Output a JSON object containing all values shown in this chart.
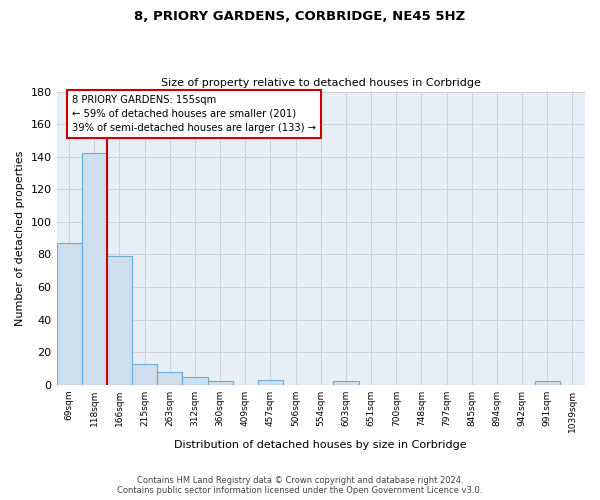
{
  "title1": "8, PRIORY GARDENS, CORBRIDGE, NE45 5HZ",
  "title2": "Size of property relative to detached houses in Corbridge",
  "xlabel": "Distribution of detached houses by size in Corbridge",
  "ylabel": "Number of detached properties",
  "footer_line1": "Contains HM Land Registry data © Crown copyright and database right 2024.",
  "footer_line2": "Contains public sector information licensed under the Open Government Licence v3.0.",
  "bin_labels": [
    "69sqm",
    "118sqm",
    "166sqm",
    "215sqm",
    "263sqm",
    "312sqm",
    "360sqm",
    "409sqm",
    "457sqm",
    "506sqm",
    "554sqm",
    "603sqm",
    "651sqm",
    "700sqm",
    "748sqm",
    "797sqm",
    "845sqm",
    "894sqm",
    "942sqm",
    "991sqm",
    "1039sqm"
  ],
  "bar_heights": [
    87,
    142,
    79,
    13,
    8,
    5,
    2,
    0,
    3,
    0,
    0,
    2,
    0,
    0,
    0,
    0,
    0,
    0,
    0,
    2,
    0
  ],
  "bar_color": "#cfdeed",
  "bar_edge_color": "#6aaad4",
  "grid_color": "#c8d0d8",
  "background_color": "#e8eef5",
  "red_line_x": 1.5,
  "red_line_color": "#cc0000",
  "annotation_text": "8 PRIORY GARDENS: 155sqm\n← 59% of detached houses are smaller (201)\n39% of semi-detached houses are larger (133) →",
  "annotation_box_color": "#ffffff",
  "annotation_box_edge": "#cc0000",
  "ylim": [
    0,
    180
  ],
  "yticks": [
    0,
    20,
    40,
    60,
    80,
    100,
    120,
    140,
    160,
    180
  ]
}
